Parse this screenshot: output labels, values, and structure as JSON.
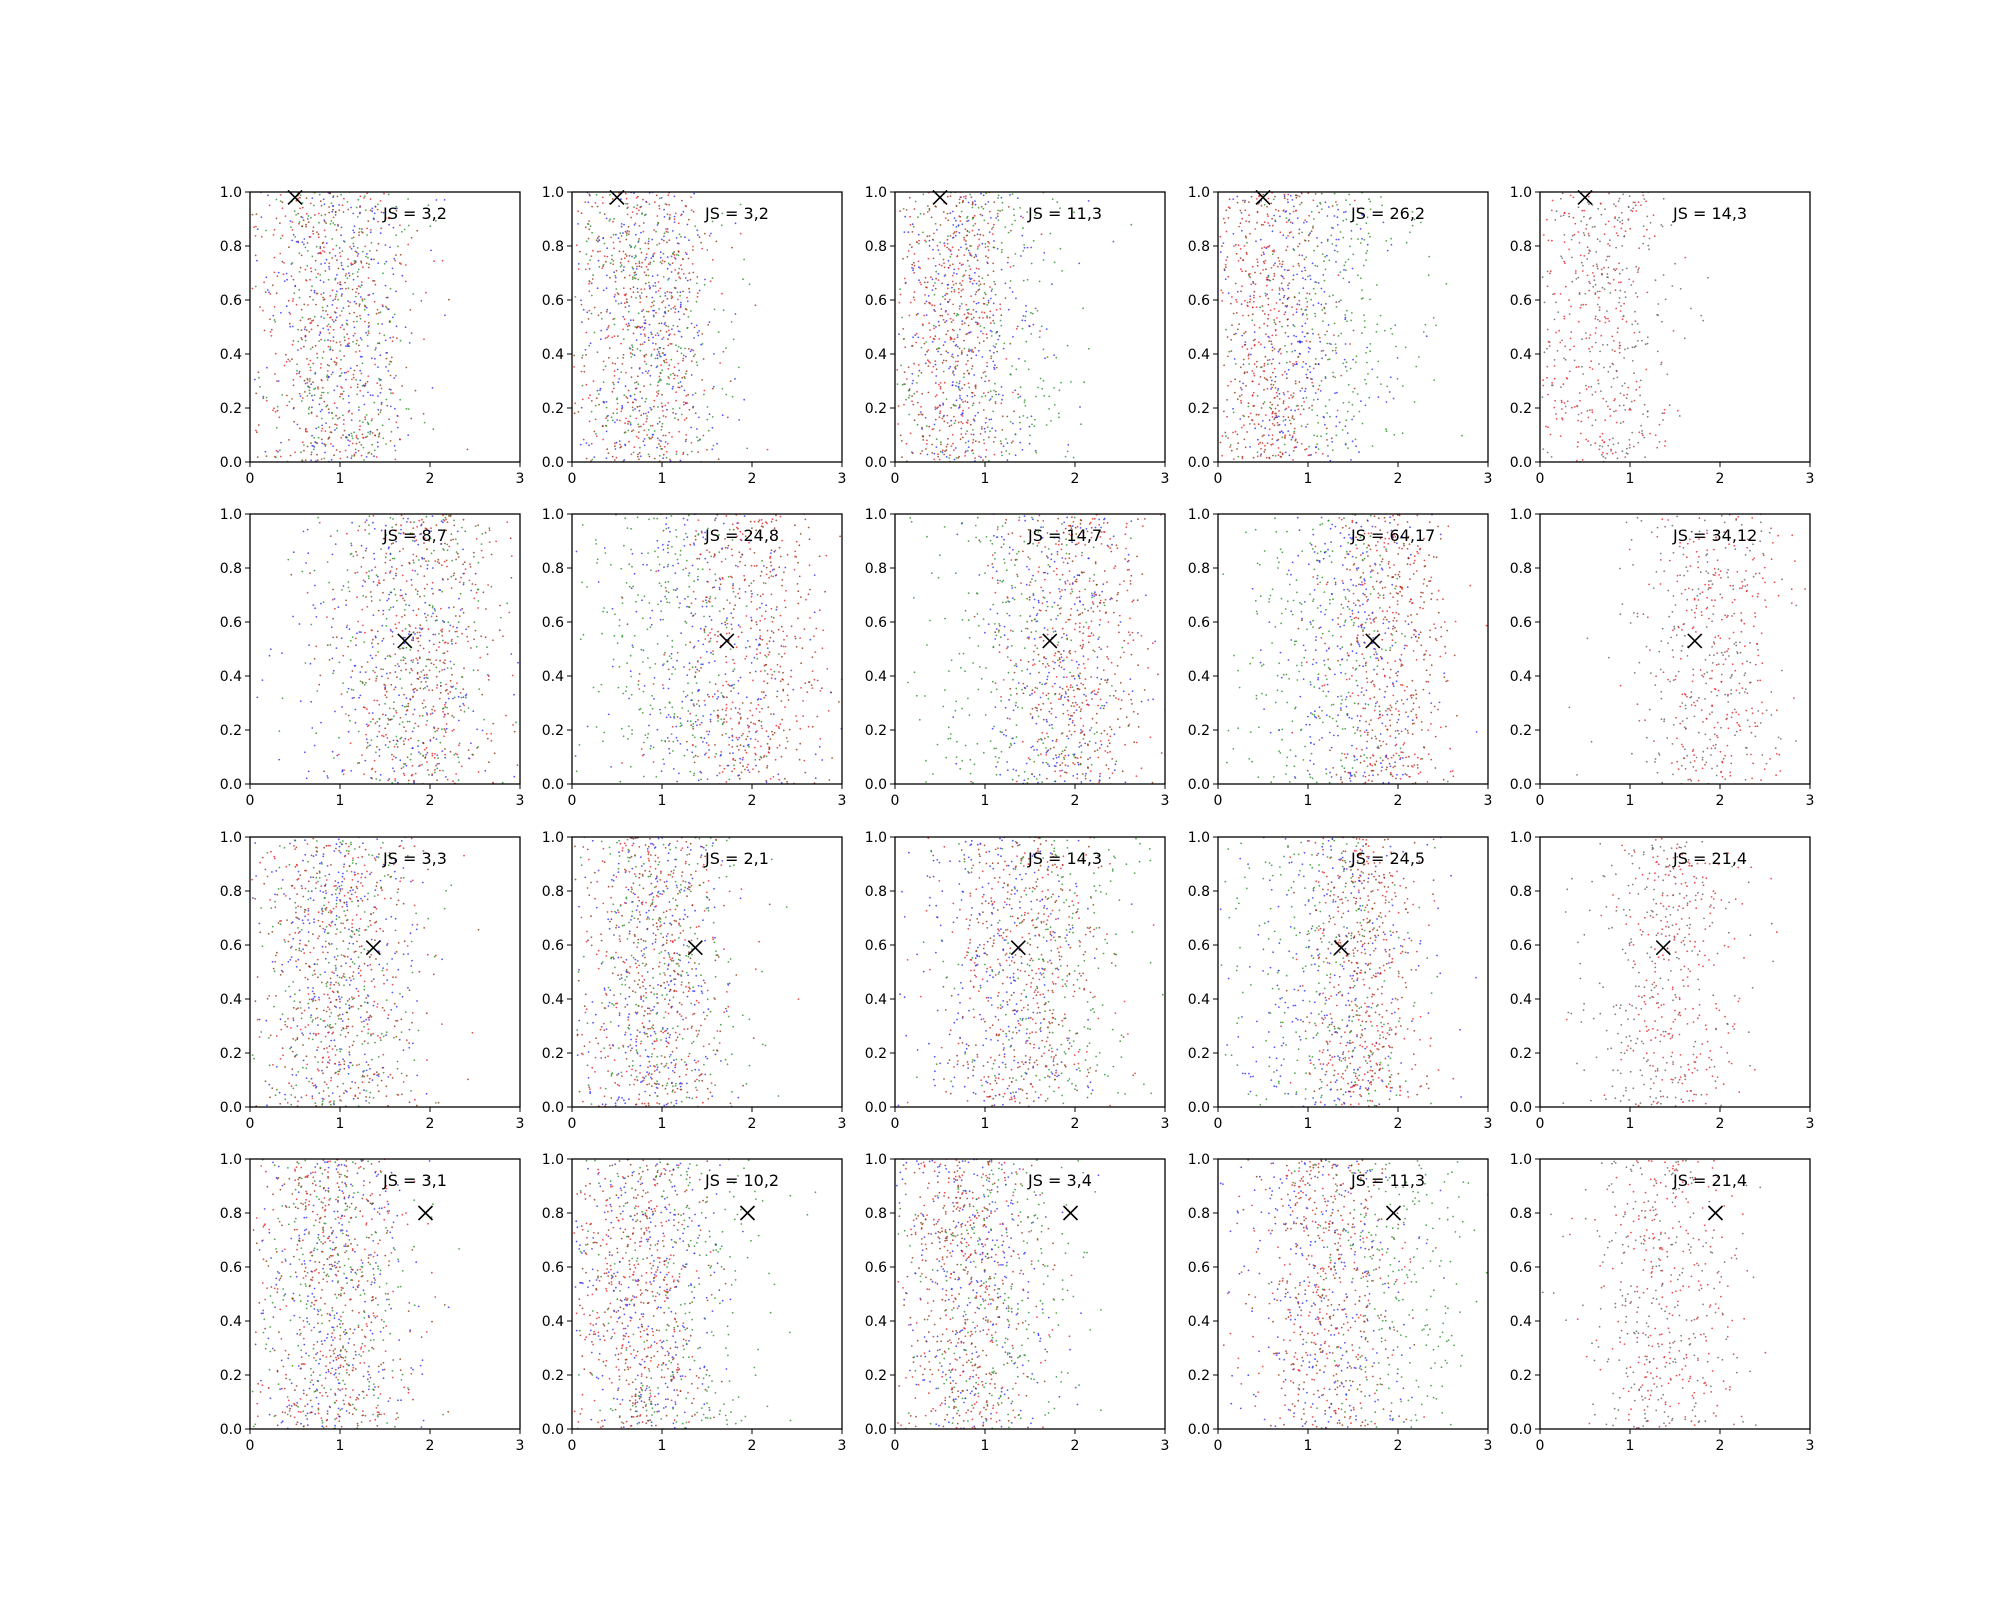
{
  "chart_data": [
    {
      "type": "scatter",
      "row": 0,
      "col": 0,
      "annotation": "JS = 3,2",
      "palette": [
        "#1f1fff",
        "#1a8a1a",
        "#e8141a",
        "#8b2500"
      ],
      "centers": [
        1.0,
        1.0,
        0.95,
        0.95
      ],
      "spread": [
        0.42,
        0.42,
        0.42,
        0.42
      ],
      "marker": [
        0.5,
        0.98
      ],
      "xlim": [
        0,
        3
      ],
      "ylim": [
        0,
        1
      ],
      "xticks": [
        "0",
        "1",
        "2",
        "3"
      ],
      "yticks": [
        "0.0",
        "0.2",
        "0.4",
        "0.6",
        "0.8",
        "1.0"
      ]
    },
    {
      "type": "scatter",
      "row": 0,
      "col": 1,
      "annotation": "JS = 3,2",
      "palette": [
        "#1f1fff",
        "#1a8a1a",
        "#e8141a",
        "#8b2500"
      ],
      "centers": [
        0.85,
        0.9,
        0.8,
        0.8
      ],
      "spread": [
        0.42,
        0.45,
        0.4,
        0.4
      ],
      "marker": [
        0.5,
        0.98
      ],
      "xlim": [
        0,
        3
      ],
      "ylim": [
        0,
        1
      ],
      "xticks": [
        "0",
        "1",
        "2",
        "3"
      ],
      "yticks": [
        "0.0",
        "0.2",
        "0.4",
        "0.6",
        "0.8",
        "1.0"
      ]
    },
    {
      "type": "scatter",
      "row": 0,
      "col": 2,
      "annotation": "JS = 11,3",
      "palette": [
        "#1f1fff",
        "#1a8a1a",
        "#e8141a",
        "#8b2500"
      ],
      "centers": [
        0.85,
        1.0,
        0.65,
        0.7
      ],
      "spread": [
        0.42,
        0.5,
        0.35,
        0.35
      ],
      "marker": [
        0.5,
        0.98
      ],
      "xlim": [
        0,
        3
      ],
      "ylim": [
        0,
        1
      ],
      "xticks": [
        "0",
        "1",
        "2",
        "3"
      ],
      "yticks": [
        "0.0",
        "0.2",
        "0.4",
        "0.6",
        "0.8",
        "1.0"
      ]
    },
    {
      "type": "scatter",
      "row": 0,
      "col": 3,
      "annotation": "JS = 26,2",
      "palette": [
        "#1f1fff",
        "#1a8a1a",
        "#e8141a",
        "#8b2500"
      ],
      "centers": [
        0.9,
        1.3,
        0.55,
        0.6
      ],
      "spread": [
        0.45,
        0.55,
        0.32,
        0.32
      ],
      "marker": [
        0.5,
        0.98
      ],
      "xlim": [
        0,
        3
      ],
      "ylim": [
        0,
        1
      ],
      "xticks": [
        "0",
        "1",
        "2",
        "3"
      ],
      "yticks": [
        "0.0",
        "0.2",
        "0.4",
        "0.6",
        "0.8",
        "1.0"
      ]
    },
    {
      "type": "scatter",
      "row": 0,
      "col": 4,
      "annotation": "JS = 14,3",
      "palette": [
        "#e8141a",
        "#555555"
      ],
      "centers": [
        0.65,
        0.8
      ],
      "spread": [
        0.38,
        0.4
      ],
      "marker": [
        0.5,
        0.98
      ],
      "xlim": [
        0,
        3
      ],
      "ylim": [
        0,
        1
      ],
      "xticks": [
        "0",
        "1",
        "2",
        "3"
      ],
      "yticks": [
        "0.0",
        "0.2",
        "0.4",
        "0.6",
        "0.8",
        "1.0"
      ]
    },
    {
      "type": "scatter",
      "row": 1,
      "col": 0,
      "annotation": "JS = 8,7",
      "palette": [
        "#1f1fff",
        "#1a8a1a",
        "#e8141a",
        "#8b2500"
      ],
      "centers": [
        1.6,
        1.8,
        1.9,
        1.9
      ],
      "spread": [
        0.55,
        0.55,
        0.5,
        0.5
      ],
      "marker": [
        1.72,
        0.53
      ],
      "xlim": [
        0,
        3
      ],
      "ylim": [
        0,
        1
      ],
      "xticks": [
        "0",
        "1",
        "2",
        "3"
      ],
      "yticks": [
        "0.0",
        "0.2",
        "0.4",
        "0.6",
        "0.8",
        "1.0"
      ]
    },
    {
      "type": "scatter",
      "row": 1,
      "col": 1,
      "annotation": "JS = 24,8",
      "palette": [
        "#1f1fff",
        "#1a8a1a",
        "#e8141a",
        "#8b2500"
      ],
      "centers": [
        1.5,
        1.1,
        2.0,
        2.0
      ],
      "spread": [
        0.55,
        0.5,
        0.45,
        0.45
      ],
      "marker": [
        1.72,
        0.53
      ],
      "xlim": [
        0,
        3
      ],
      "ylim": [
        0,
        1
      ],
      "xticks": [
        "0",
        "1",
        "2",
        "3"
      ],
      "yticks": [
        "0.0",
        "0.2",
        "0.4",
        "0.6",
        "0.8",
        "1.0"
      ]
    },
    {
      "type": "scatter",
      "row": 1,
      "col": 2,
      "annotation": "JS = 14,7",
      "palette": [
        "#1f1fff",
        "#1a8a1a",
        "#e8141a",
        "#8b2500"
      ],
      "centers": [
        1.8,
        1.3,
        2.0,
        2.0
      ],
      "spread": [
        0.45,
        0.6,
        0.4,
        0.4
      ],
      "marker": [
        1.72,
        0.53
      ],
      "xlim": [
        0,
        3
      ],
      "ylim": [
        0,
        1
      ],
      "xticks": [
        "0",
        "1",
        "2",
        "3"
      ],
      "yticks": [
        "0.0",
        "0.2",
        "0.4",
        "0.6",
        "0.8",
        "1.0"
      ]
    },
    {
      "type": "scatter",
      "row": 1,
      "col": 3,
      "annotation": "JS = 64,17",
      "palette": [
        "#1f1fff",
        "#1a8a1a",
        "#e8141a",
        "#8b2500"
      ],
      "centers": [
        1.5,
        1.2,
        1.9,
        1.9
      ],
      "spread": [
        0.45,
        0.5,
        0.35,
        0.35
      ],
      "marker": [
        1.72,
        0.53
      ],
      "xlim": [
        0,
        3
      ],
      "ylim": [
        0,
        1
      ],
      "xticks": [
        "0",
        "1",
        "2",
        "3"
      ],
      "yticks": [
        "0.0",
        "0.2",
        "0.4",
        "0.6",
        "0.8",
        "1.0"
      ]
    },
    {
      "type": "scatter",
      "row": 1,
      "col": 4,
      "annotation": "JS = 34,12",
      "palette": [
        "#e8141a",
        "#555555"
      ],
      "centers": [
        2.0,
        1.8
      ],
      "spread": [
        0.38,
        0.45
      ],
      "marker": [
        1.72,
        0.53
      ],
      "xlim": [
        0,
        3
      ],
      "ylim": [
        0,
        1
      ],
      "xticks": [
        "0",
        "1",
        "2",
        "3"
      ],
      "yticks": [
        "0.0",
        "0.2",
        "0.4",
        "0.6",
        "0.8",
        "1.0"
      ]
    },
    {
      "type": "scatter",
      "row": 2,
      "col": 0,
      "annotation": "JS = 3,3",
      "palette": [
        "#1f1fff",
        "#1a8a1a",
        "#e8141a",
        "#8b2500"
      ],
      "centers": [
        1.0,
        1.0,
        1.0,
        1.0
      ],
      "spread": [
        0.45,
        0.45,
        0.45,
        0.45
      ],
      "marker": [
        1.37,
        0.59
      ],
      "xlim": [
        0,
        3
      ],
      "ylim": [
        0,
        1
      ],
      "xticks": [
        "0",
        "1",
        "2",
        "3"
      ],
      "yticks": [
        "0.0",
        "0.2",
        "0.4",
        "0.6",
        "0.8",
        "1.0"
      ]
    },
    {
      "type": "scatter",
      "row": 2,
      "col": 1,
      "annotation": "JS = 2,1",
      "palette": [
        "#1f1fff",
        "#1a8a1a",
        "#e8141a",
        "#8b2500"
      ],
      "centers": [
        0.9,
        1.0,
        0.9,
        0.9
      ],
      "spread": [
        0.42,
        0.45,
        0.42,
        0.42
      ],
      "marker": [
        1.37,
        0.59
      ],
      "xlim": [
        0,
        3
      ],
      "ylim": [
        0,
        1
      ],
      "xticks": [
        "0",
        "1",
        "2",
        "3"
      ],
      "yticks": [
        "0.0",
        "0.2",
        "0.4",
        "0.6",
        "0.8",
        "1.0"
      ]
    },
    {
      "type": "scatter",
      "row": 2,
      "col": 2,
      "annotation": "JS = 14,3",
      "palette": [
        "#1f1fff",
        "#1a8a1a",
        "#e8141a",
        "#8b2500"
      ],
      "centers": [
        1.2,
        1.8,
        1.4,
        1.4
      ],
      "spread": [
        0.5,
        0.55,
        0.45,
        0.45
      ],
      "marker": [
        1.37,
        0.59
      ],
      "xlim": [
        0,
        3
      ],
      "ylim": [
        0,
        1
      ],
      "xticks": [
        "0",
        "1",
        "2",
        "3"
      ],
      "yticks": [
        "0.0",
        "0.2",
        "0.4",
        "0.6",
        "0.8",
        "1.0"
      ]
    },
    {
      "type": "scatter",
      "row": 2,
      "col": 3,
      "annotation": "JS = 24,5",
      "palette": [
        "#1f1fff",
        "#1a8a1a",
        "#e8141a",
        "#8b2500"
      ],
      "centers": [
        1.3,
        1.2,
        1.6,
        1.6
      ],
      "spread": [
        0.5,
        0.55,
        0.3,
        0.3
      ],
      "marker": [
        1.37,
        0.59
      ],
      "xlim": [
        0,
        3
      ],
      "ylim": [
        0,
        1
      ],
      "xticks": [
        "0",
        "1",
        "2",
        "3"
      ],
      "yticks": [
        "0.0",
        "0.2",
        "0.4",
        "0.6",
        "0.8",
        "1.0"
      ]
    },
    {
      "type": "scatter",
      "row": 2,
      "col": 4,
      "annotation": "JS = 21,4",
      "palette": [
        "#e8141a",
        "#555555"
      ],
      "centers": [
        1.5,
        1.3
      ],
      "spread": [
        0.35,
        0.45
      ],
      "marker": [
        1.37,
        0.59
      ],
      "xlim": [
        0,
        3
      ],
      "ylim": [
        0,
        1
      ],
      "xticks": [
        "0",
        "1",
        "2",
        "3"
      ],
      "yticks": [
        "0.0",
        "0.2",
        "0.4",
        "0.6",
        "0.8",
        "1.0"
      ]
    },
    {
      "type": "scatter",
      "row": 3,
      "col": 0,
      "annotation": "JS = 3,1",
      "palette": [
        "#1f1fff",
        "#1a8a1a",
        "#e8141a",
        "#8b2500"
      ],
      "centers": [
        0.95,
        0.95,
        0.9,
        0.9
      ],
      "spread": [
        0.45,
        0.45,
        0.42,
        0.42
      ],
      "marker": [
        1.95,
        0.8
      ],
      "xlim": [
        0,
        3
      ],
      "ylim": [
        0,
        1
      ],
      "xticks": [
        "0",
        "1",
        "2",
        "3"
      ],
      "yticks": [
        "0.0",
        "0.2",
        "0.4",
        "0.6",
        "0.8",
        "1.0"
      ]
    },
    {
      "type": "scatter",
      "row": 3,
      "col": 1,
      "annotation": "JS = 10,2",
      "palette": [
        "#1f1fff",
        "#1a8a1a",
        "#e8141a",
        "#8b2500"
      ],
      "centers": [
        0.85,
        1.2,
        0.75,
        0.75
      ],
      "spread": [
        0.42,
        0.55,
        0.38,
        0.38
      ],
      "marker": [
        1.95,
        0.8
      ],
      "xlim": [
        0,
        3
      ],
      "ylim": [
        0,
        1
      ],
      "xticks": [
        "0",
        "1",
        "2",
        "3"
      ],
      "yticks": [
        "0.0",
        "0.2",
        "0.4",
        "0.6",
        "0.8",
        "1.0"
      ]
    },
    {
      "type": "scatter",
      "row": 3,
      "col": 2,
      "annotation": "JS = 3,4",
      "palette": [
        "#1f1fff",
        "#1a8a1a",
        "#e8141a",
        "#8b2500"
      ],
      "centers": [
        0.85,
        1.1,
        0.8,
        0.8
      ],
      "spread": [
        0.42,
        0.5,
        0.4,
        0.4
      ],
      "marker": [
        1.95,
        0.8
      ],
      "xlim": [
        0,
        3
      ],
      "ylim": [
        0,
        1
      ],
      "xticks": [
        "0",
        "1",
        "2",
        "3"
      ],
      "yticks": [
        "0.0",
        "0.2",
        "0.4",
        "0.6",
        "0.8",
        "1.0"
      ]
    },
    {
      "type": "scatter",
      "row": 3,
      "col": 3,
      "annotation": "JS = 11,3",
      "palette": [
        "#1f1fff",
        "#1a8a1a",
        "#e8141a",
        "#8b2500"
      ],
      "centers": [
        1.2,
        2.0,
        1.2,
        1.2
      ],
      "spread": [
        0.5,
        0.5,
        0.4,
        0.4
      ],
      "marker": [
        1.95,
        0.8
      ],
      "xlim": [
        0,
        3
      ],
      "ylim": [
        0,
        1
      ],
      "xticks": [
        "0",
        "1",
        "2",
        "3"
      ],
      "yticks": [
        "0.0",
        "0.2",
        "0.4",
        "0.6",
        "0.8",
        "1.0"
      ]
    },
    {
      "type": "scatter",
      "row": 3,
      "col": 4,
      "annotation": "JS = 21,4",
      "palette": [
        "#e8141a",
        "#555555"
      ],
      "centers": [
        1.45,
        1.3
      ],
      "spread": [
        0.38,
        0.45
      ],
      "marker": [
        1.95,
        0.8
      ],
      "xlim": [
        0,
        3
      ],
      "ylim": [
        0,
        1
      ],
      "xticks": [
        "0",
        "1",
        "2",
        "3"
      ],
      "yticks": [
        "0.0",
        "0.2",
        "0.4",
        "0.6",
        "0.8",
        "1.0"
      ]
    }
  ]
}
